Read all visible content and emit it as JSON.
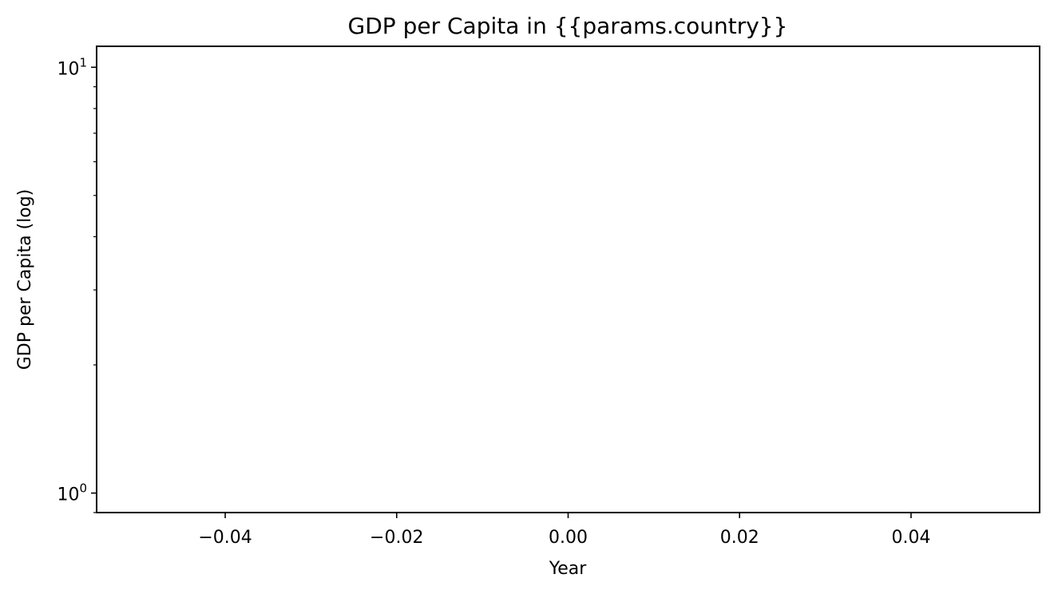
{
  "chart_data": {
    "type": "line",
    "title": "GDP per Capita in {{params.country}}",
    "xlabel": "Year",
    "ylabel": "GDP per Capita (log)",
    "yscale": "log",
    "grid": false,
    "xlim": [
      -0.055,
      0.055
    ],
    "ylim": [
      0.9,
      11.2
    ],
    "x_ticks": [
      -0.04,
      -0.02,
      0.0,
      0.02,
      0.04
    ],
    "x_tick_labels": [
      "−0.04",
      "−0.02",
      "0.00",
      "0.02",
      "0.04"
    ],
    "y_major_ticks": [
      1,
      10
    ],
    "y_major_tick_labels": [
      {
        "base": "10",
        "exp": "0"
      },
      {
        "base": "10",
        "exp": "1"
      }
    ],
    "y_minor_ticks": [
      0.9,
      2,
      3,
      4,
      5,
      6,
      7,
      8,
      9
    ],
    "series": []
  },
  "colors": {
    "axis": "#000000",
    "background": "#ffffff"
  }
}
